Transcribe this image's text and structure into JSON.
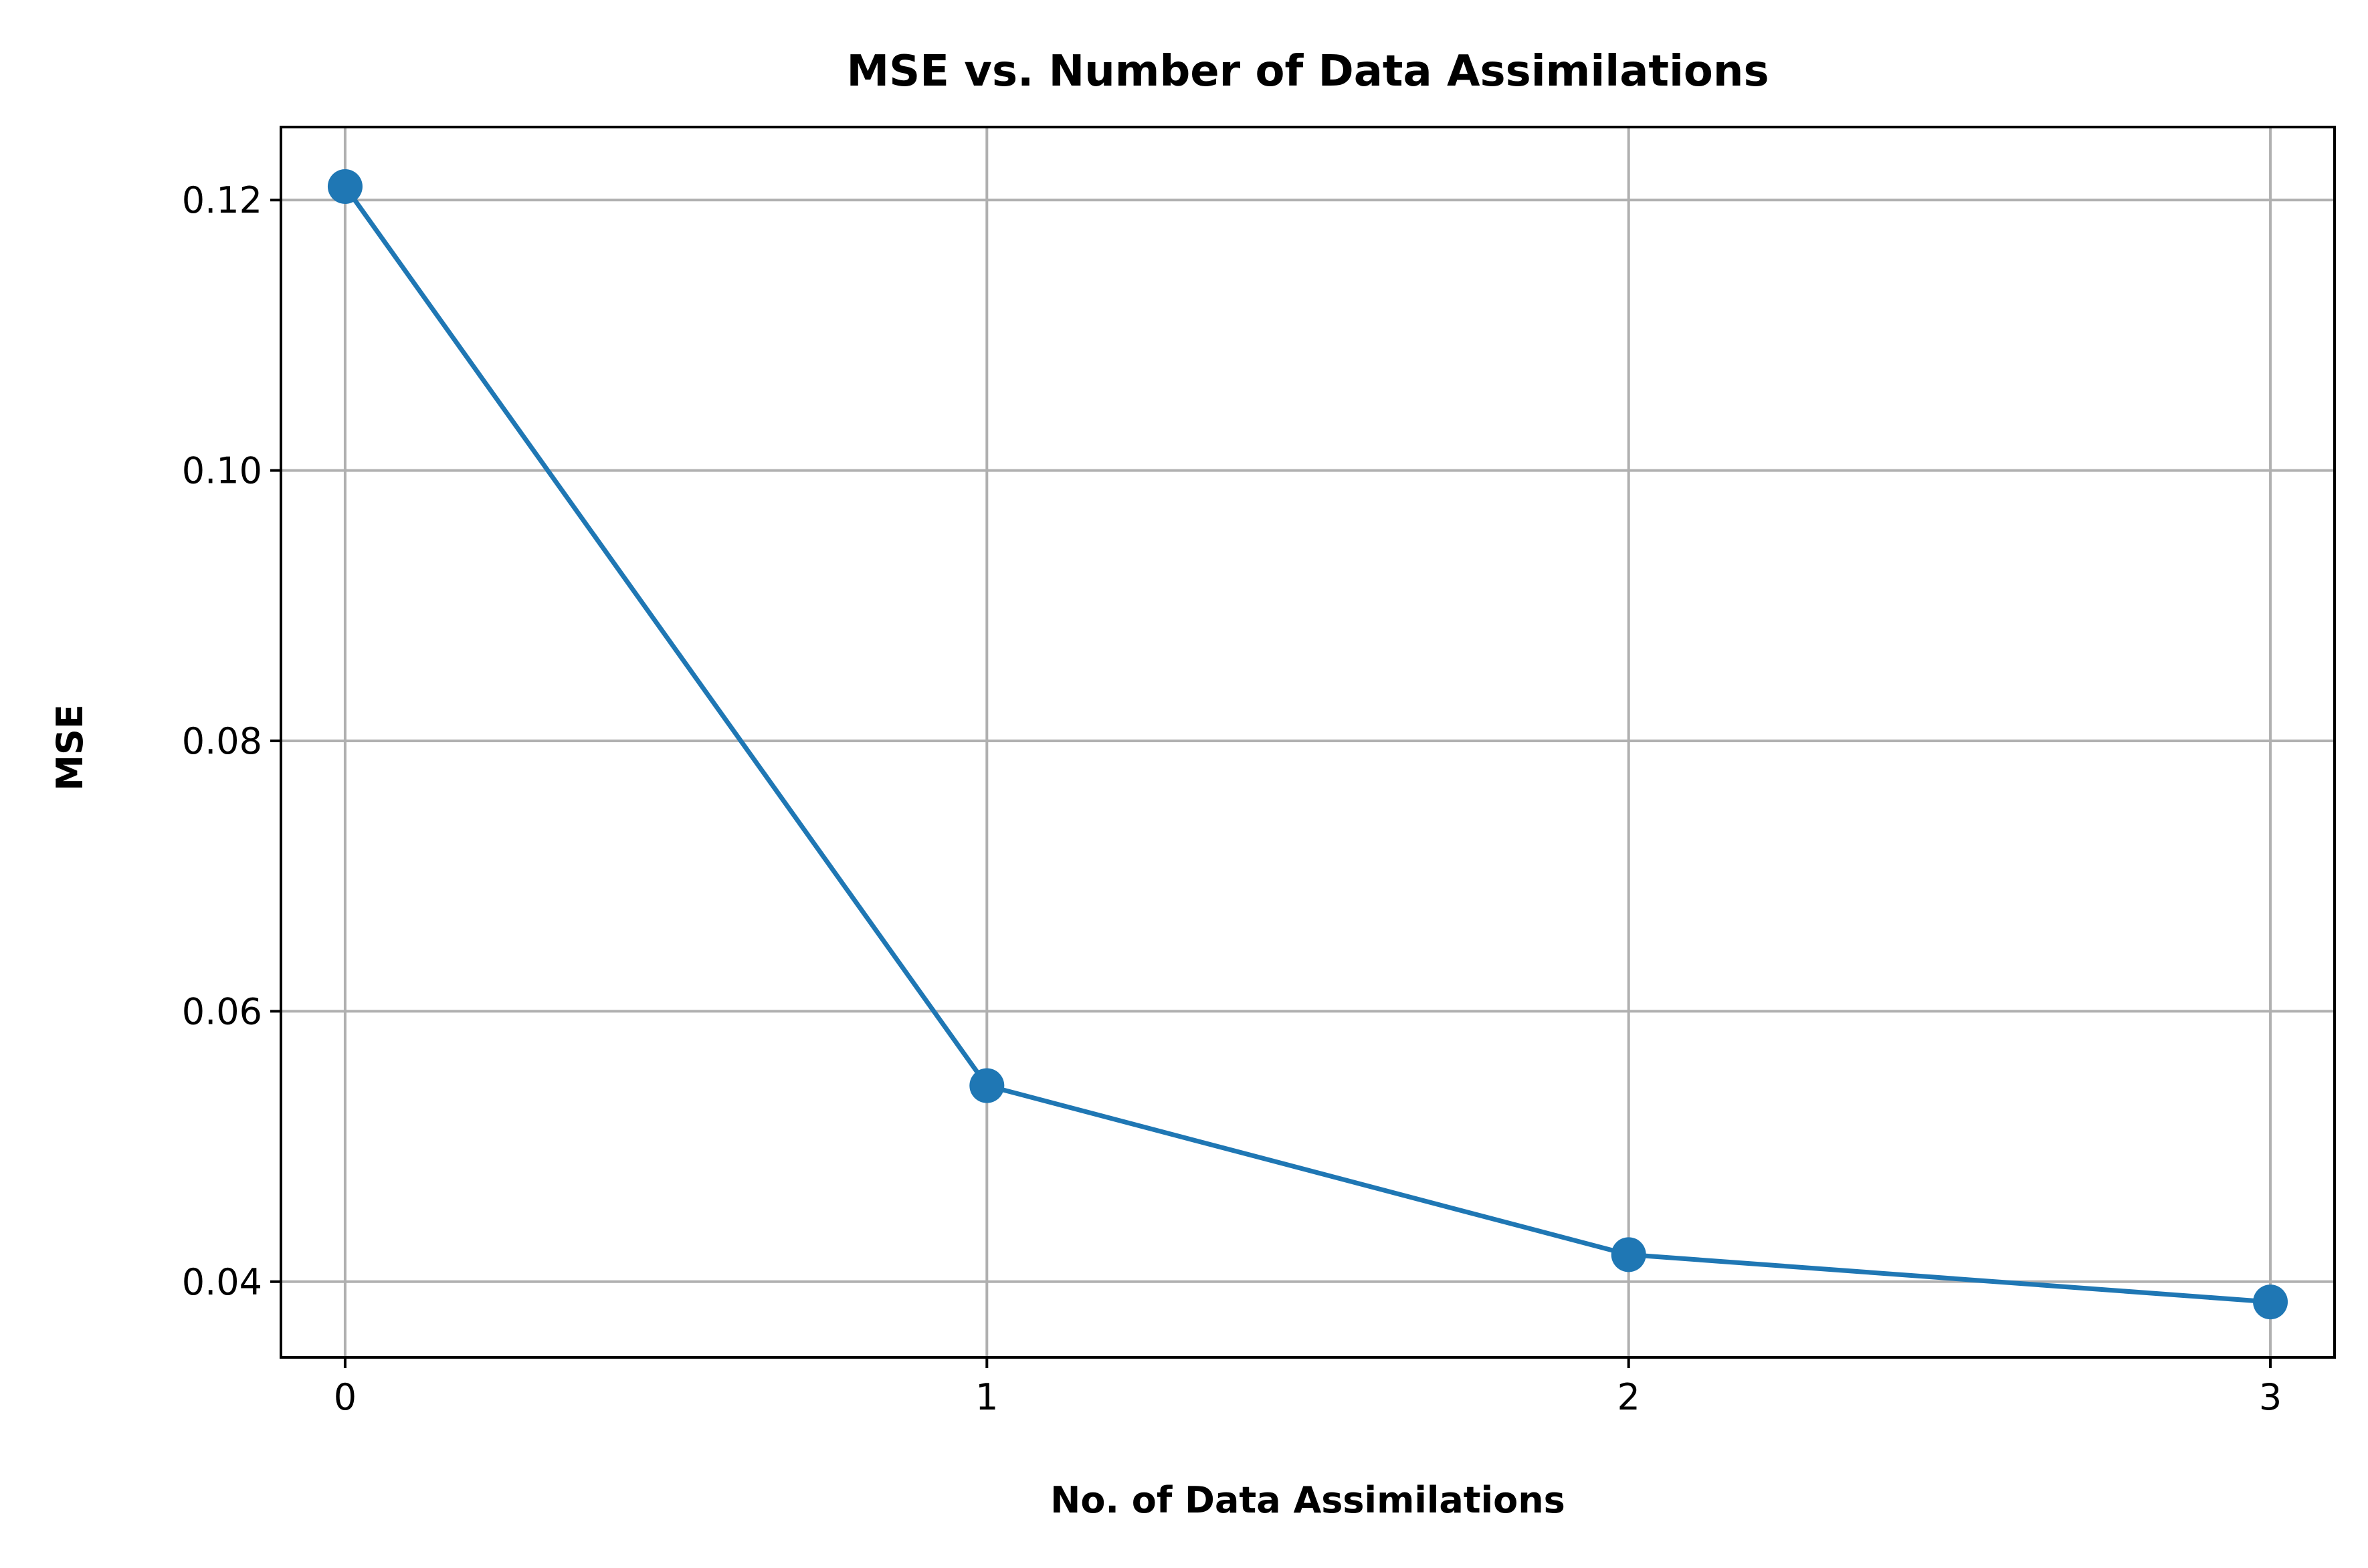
{
  "chart_data": {
    "type": "line",
    "title": "MSE vs. Number of Data Assimilations",
    "xlabel": "No. of Data Assimilations",
    "ylabel": "MSE",
    "x": [
      0,
      1,
      2,
      3
    ],
    "xticks": [
      "0",
      "1",
      "2",
      "3"
    ],
    "xlim": [
      -0.1,
      3.1
    ],
    "yticks": [
      "0.04",
      "0.06",
      "0.08",
      "0.10",
      "0.12"
    ],
    "ytick_values": [
      0.04,
      0.06,
      0.08,
      0.1,
      0.12
    ],
    "ylim": [
      0.0344,
      0.1254
    ],
    "series": [
      {
        "values": [
          0.121,
          0.0545,
          0.042,
          0.0385
        ],
        "color": "#1f77b4",
        "marker": "circle"
      }
    ],
    "grid": true,
    "legend": "none",
    "colors": {
      "series": "#1f77b4",
      "grid": "#b0b0b0",
      "axes": "#000000"
    }
  }
}
